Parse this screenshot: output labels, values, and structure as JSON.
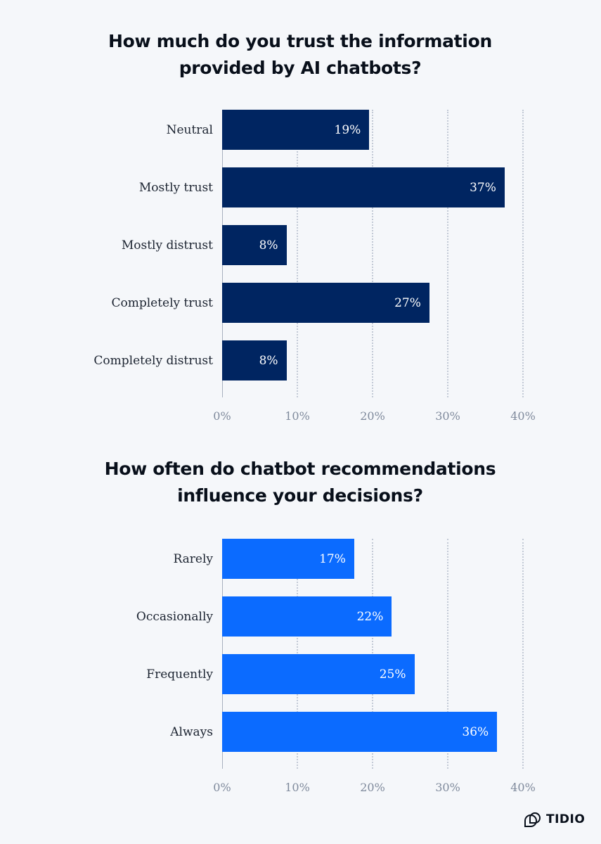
{
  "chart_data": [
    {
      "type": "bar",
      "orientation": "horizontal",
      "title": "How much do you trust the information provided by AI chatbots?",
      "categories": [
        "Neutral",
        "Mostly trust",
        "Mostly distrust",
        "Completely trust",
        "Completely distrust"
      ],
      "values": [
        19,
        37,
        8,
        27,
        8
      ],
      "data_labels": [
        "19%",
        "37%",
        "8%",
        "27%",
        "8%"
      ],
      "xlim": [
        0,
        40
      ],
      "x_ticks": [
        "0%",
        "10%",
        "20%",
        "30%",
        "40%"
      ],
      "grid": true,
      "color": "#002561"
    },
    {
      "type": "bar",
      "orientation": "horizontal",
      "title": "How often do chatbot recommendations influence your decisions?",
      "categories": [
        "Rarely",
        "Occasionally",
        "Frequently",
        "Always"
      ],
      "values": [
        17,
        22,
        25,
        36
      ],
      "data_labels": [
        "17%",
        "22%",
        "25%",
        "36%"
      ],
      "xlim": [
        0,
        40
      ],
      "x_ticks": [
        "0%",
        "10%",
        "20%",
        "30%",
        "40%"
      ],
      "grid": true,
      "color": "#0b6bff"
    }
  ],
  "logo": {
    "text": "TIDIO"
  }
}
